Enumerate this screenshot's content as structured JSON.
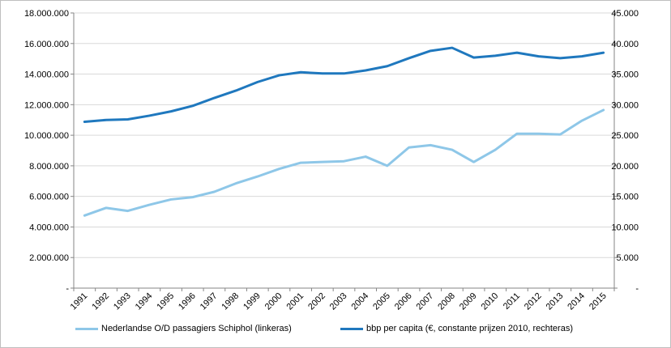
{
  "chart_data": {
    "type": "line",
    "title": "",
    "xlabel": "",
    "categories": [
      "1991",
      "1992",
      "1993",
      "1994",
      "1995",
      "1996",
      "1997",
      "1998",
      "1999",
      "2000",
      "2001",
      "2002",
      "2003",
      "2004",
      "2005",
      "2006",
      "2007",
      "2008",
      "2009",
      "2010",
      "2011",
      "2012",
      "2013",
      "2014",
      "2015"
    ],
    "y_left": {
      "min": 0,
      "max": 18000000,
      "step": 2000000,
      "tick_labels": [
        "-",
        "2.000.000",
        "4.000.000",
        "6.000.000",
        "8.000.000",
        "10.000.000",
        "12.000.000",
        "14.000.000",
        "16.000.000",
        "18.000.000"
      ]
    },
    "y_right": {
      "min": 0,
      "max": 45000,
      "step": 5000,
      "tick_labels": [
        "-",
        "5.000",
        "10.000",
        "15.000",
        "20.000",
        "25.000",
        "30.000",
        "35.000",
        "40.000",
        "45.000"
      ]
    },
    "grid": "horizontal",
    "legend_position": "bottom",
    "series": [
      {
        "name": "Nederlandse O/D passagiers Schiphol (linkeras)",
        "axis": "left",
        "color": "#8ec7e8",
        "values": [
          4750000,
          5250000,
          5050000,
          5450000,
          5800000,
          5950000,
          6300000,
          6850000,
          7300000,
          7800000,
          8200000,
          8250000,
          8300000,
          8600000,
          8000000,
          9200000,
          9350000,
          9050000,
          8250000,
          9050000,
          10100000,
          10100000,
          10050000,
          10950000,
          11650000
        ]
      },
      {
        "name": "bbp per capita (€, constante prijzen 2010, rechteras)",
        "axis": "right",
        "color": "#1f78be",
        "values": [
          27200,
          27500,
          27600,
          28200,
          28900,
          29800,
          31100,
          32300,
          33700,
          34800,
          35300,
          35100,
          35100,
          35600,
          36300,
          37600,
          38800,
          39300,
          37700,
          38000,
          38500,
          37900,
          37600,
          37900,
          38500
        ]
      }
    ]
  }
}
